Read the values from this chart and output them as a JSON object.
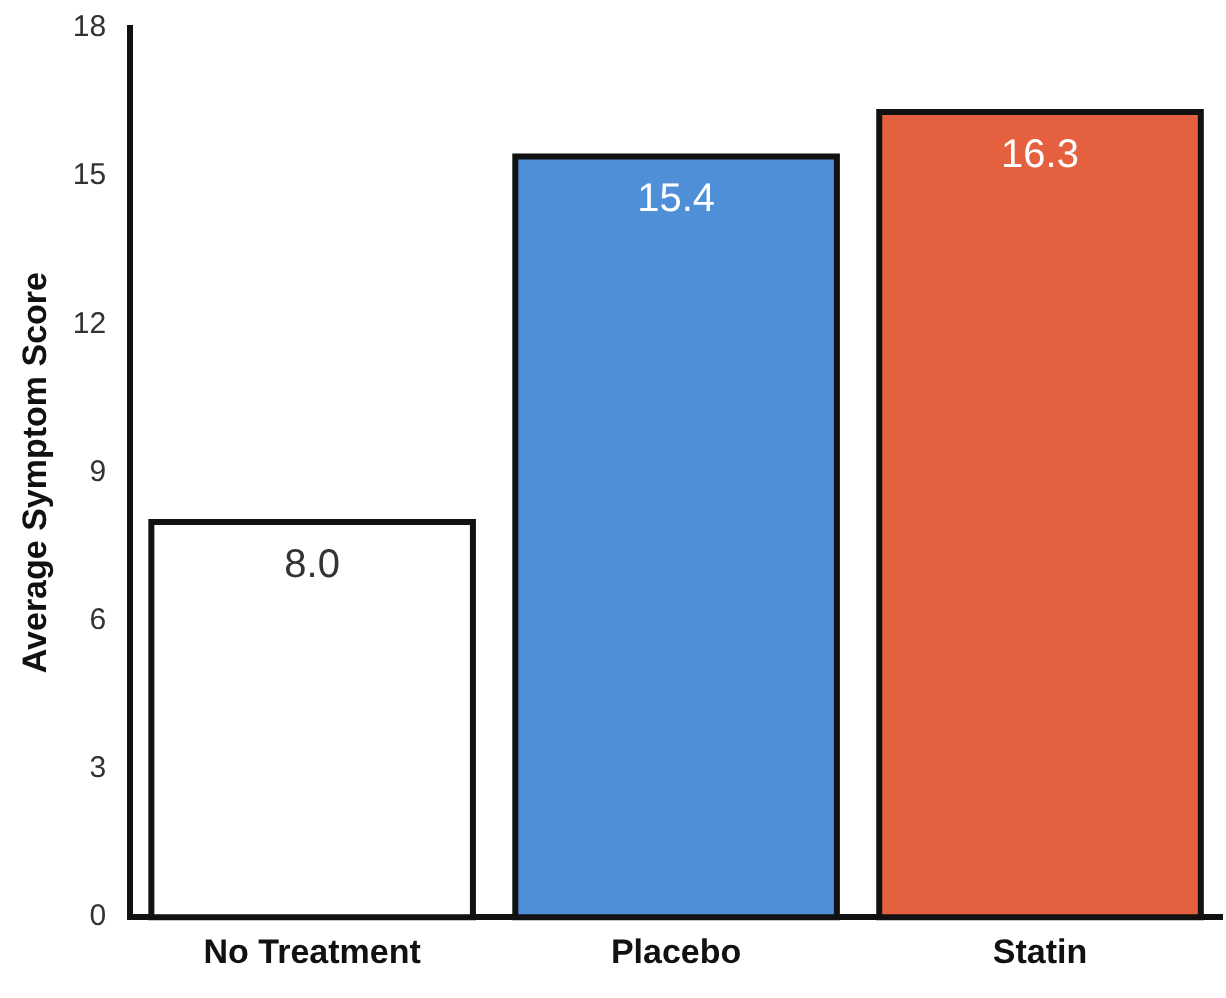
{
  "chart_data": {
    "type": "bar",
    "ylabel": "Average Symptom Score",
    "categories": [
      "No Treatment",
      "Placebo",
      "Statin"
    ],
    "values": [
      8.0,
      15.4,
      16.3
    ],
    "colors": [
      "#ffffff",
      "#4f8fd8",
      "#e4603e"
    ],
    "value_labels": [
      "8.0",
      "15.4",
      "16.3"
    ],
    "ylim": [
      0,
      18
    ],
    "yticks": [
      0,
      3,
      6,
      9,
      12,
      15,
      18
    ],
    "grid": false,
    "legend": false
  }
}
